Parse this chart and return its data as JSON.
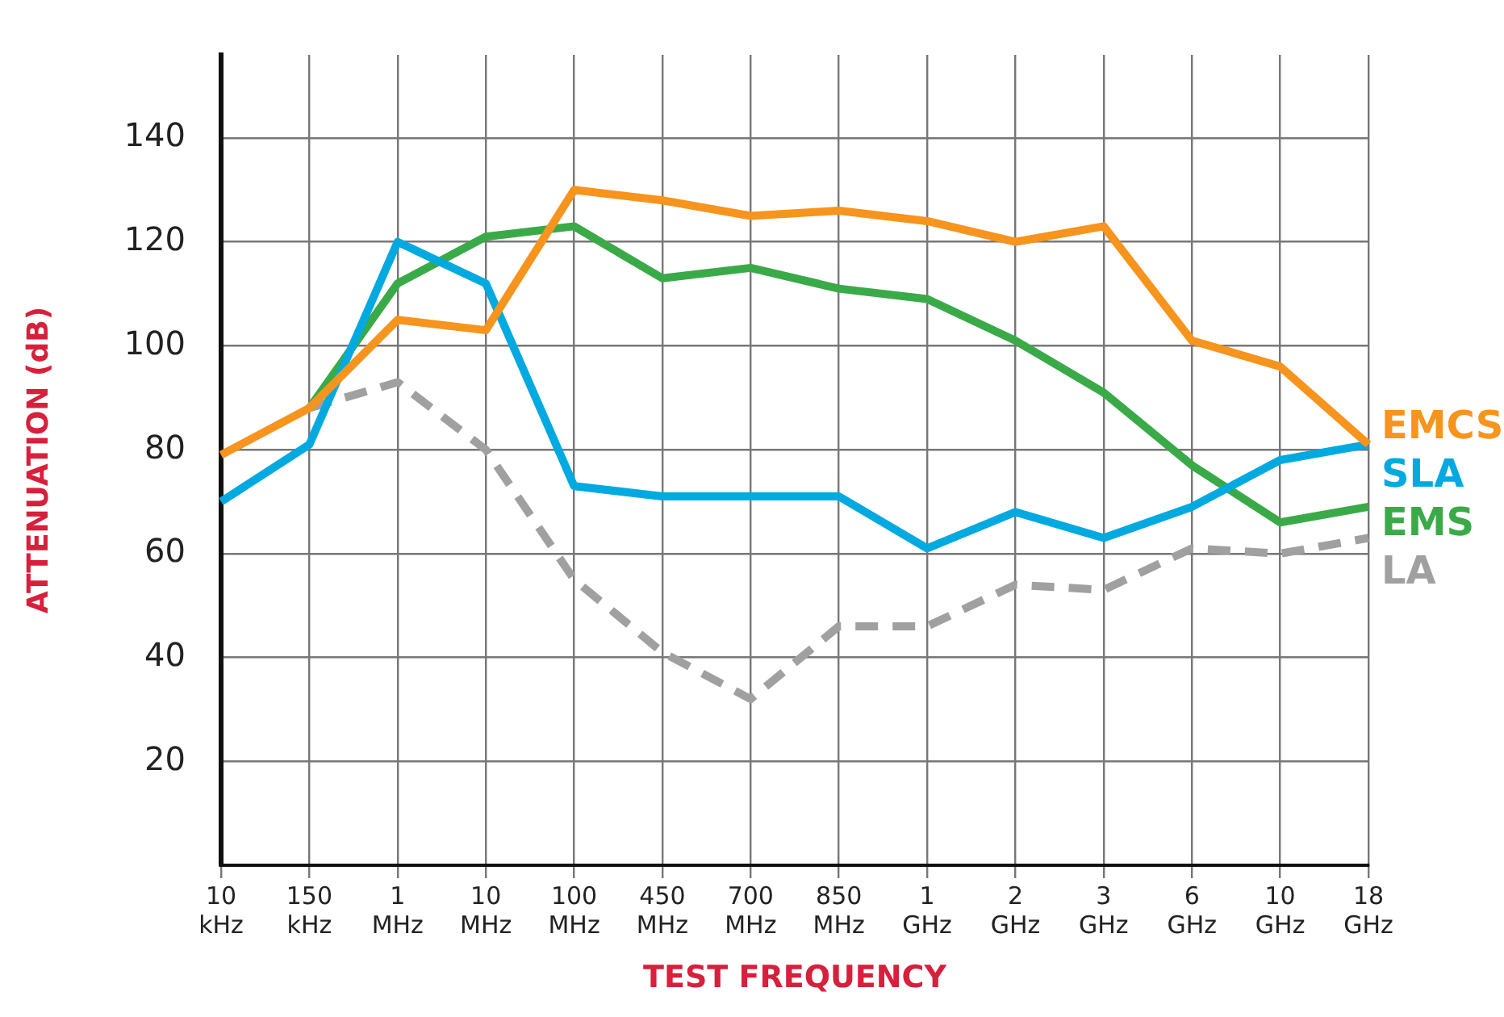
{
  "chart_data": {
    "type": "line",
    "xlabel": "TEST FREQUENCY",
    "ylabel": "ATTENUATION (dB)",
    "categories": [
      "10 kHz",
      "150 kHz",
      "1 MHz",
      "10 MHz",
      "100 MHz",
      "450 MHz",
      "700 MHz",
      "850 MHz",
      "1 GHz",
      "2 GHz",
      "3 GHz",
      "6 GHz",
      "10 GHz",
      "18 GHz"
    ],
    "series": [
      {
        "name": "EMCS",
        "color": "#f7941d",
        "line_style": "solid",
        "values": [
          79,
          88,
          105,
          103,
          130,
          128,
          125,
          126,
          124,
          120,
          123,
          101,
          96,
          81
        ]
      },
      {
        "name": "SLA",
        "color": "#00a9e0",
        "line_style": "solid",
        "values": [
          70,
          81,
          120,
          112,
          73,
          71,
          71,
          71,
          61,
          68,
          63,
          69,
          78,
          81
        ]
      },
      {
        "name": "EMS",
        "color": "#3aaa48",
        "line_style": "solid",
        "values": [
          null,
          88,
          112,
          121,
          123,
          113,
          115,
          111,
          109,
          101,
          91,
          77,
          66,
          69
        ]
      },
      {
        "name": "LA",
        "color": "#a0a0a0",
        "line_style": "dashed",
        "values": [
          null,
          88,
          93,
          80,
          55,
          41,
          32,
          46,
          46,
          54,
          53,
          61,
          60,
          63
        ]
      }
    ],
    "ylim": [
      0,
      156
    ],
    "yticks": [
      20,
      40,
      60,
      80,
      100,
      120,
      140
    ],
    "grid": true,
    "legend": false,
    "marker": "none"
  }
}
